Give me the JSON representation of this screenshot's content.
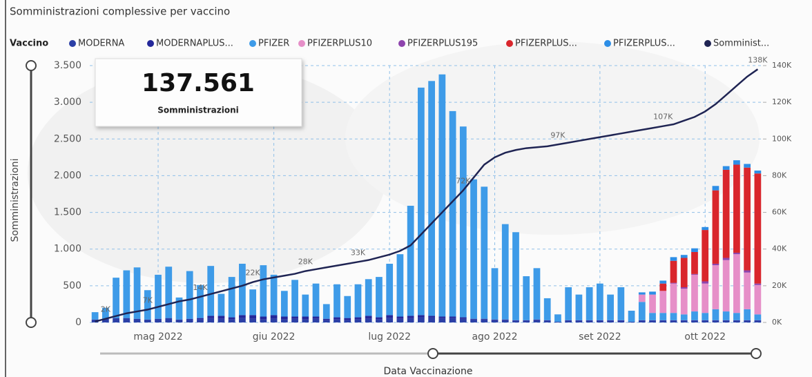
{
  "chart_data": {
    "type": "bar",
    "stacked": true,
    "title": "Somministrazioni complessive per vaccino",
    "legend_title": "Vaccino",
    "x_label": "Data Vaccinazione",
    "y_label": "Somministrazioni",
    "card": {
      "value": "137.561",
      "label": "Somministrazioni"
    },
    "grid": true,
    "categories": [
      null,
      null,
      null,
      null,
      null,
      null,
      "mag 2022",
      null,
      null,
      null,
      null,
      null,
      null,
      null,
      null,
      null,
      null,
      "giu 2022",
      null,
      null,
      null,
      null,
      null,
      null,
      null,
      null,
      null,
      null,
      "lug 2022",
      null,
      null,
      null,
      null,
      null,
      null,
      null,
      null,
      null,
      "ago 2022",
      null,
      null,
      null,
      null,
      null,
      null,
      null,
      null,
      null,
      "set 2022",
      null,
      null,
      null,
      null,
      null,
      null,
      null,
      null,
      null,
      "ott 2022",
      null,
      null,
      null,
      null,
      null
    ],
    "ylim": [
      0,
      3500
    ],
    "yticks": [
      0,
      500,
      {
        "value": 1000,
        "label": "1.000"
      },
      {
        "value": 1500,
        "label": "1.500"
      },
      {
        "value": 2000,
        "label": "2.000"
      },
      {
        "value": 2500,
        "label": "2.500"
      },
      {
        "value": 3000,
        "label": "3.000"
      },
      {
        "value": 3500,
        "label": "3.500"
      }
    ],
    "y2lim": [
      0,
      140000
    ],
    "y2ticks": [
      {
        "value": 0,
        "label": "0K"
      },
      {
        "value": 20000,
        "label": "20K"
      },
      {
        "value": 40000,
        "label": "40K"
      },
      {
        "value": 60000,
        "label": "60K"
      },
      {
        "value": 80000,
        "label": "80K"
      },
      {
        "value": 100000,
        "label": "100K"
      },
      {
        "value": 120000,
        "label": "120K"
      },
      {
        "value": 140000,
        "label": "140K"
      }
    ],
    "series": [
      {
        "name": "MODERNA",
        "color": "#2b3fa6",
        "values": [
          40,
          50,
          60,
          60,
          50,
          40,
          50,
          60,
          40,
          50,
          40,
          60,
          50,
          40,
          60,
          50,
          40,
          50,
          40,
          50,
          40,
          50,
          30,
          40,
          30,
          40,
          50,
          40,
          60,
          50,
          60,
          70,
          70,
          60,
          60,
          50,
          40,
          40,
          30,
          30,
          20,
          20,
          30,
          20,
          10,
          20,
          20,
          20,
          20,
          20,
          20,
          10,
          20,
          20,
          20,
          20,
          20,
          20,
          20,
          20,
          20,
          20,
          20,
          20
        ]
      },
      {
        "name": "MODERNAPLUS...",
        "color": "#24289a",
        "values": [
          0,
          0,
          0,
          0,
          0,
          0,
          0,
          0,
          0,
          0,
          20,
          30,
          40,
          30,
          40,
          50,
          40,
          50,
          40,
          30,
          40,
          30,
          20,
          30,
          30,
          30,
          40,
          30,
          40,
          30,
          30,
          30,
          20,
          20,
          20,
          20,
          10,
          10,
          10,
          10,
          10,
          10,
          10,
          10,
          0,
          10,
          10,
          10,
          10,
          10,
          10,
          0,
          10,
          10,
          10,
          10,
          10,
          10,
          10,
          10,
          10,
          10,
          10,
          10
        ]
      },
      {
        "name": "PFIZER",
        "color": "#3e9be8",
        "values": [
          100,
          150,
          550,
          650,
          700,
          400,
          600,
          700,
          300,
          650,
          450,
          680,
          300,
          550,
          700,
          350,
          700,
          550,
          350,
          500,
          300,
          450,
          200,
          450,
          300,
          450,
          500,
          550,
          700,
          850,
          1500,
          3100,
          3200,
          3300,
          2800,
          2600,
          1900,
          1800,
          700,
          1300,
          1200,
          600,
          700,
          300,
          100,
          450,
          350,
          450,
          500,
          350,
          450,
          150,
          250,
          100,
          100,
          100,
          80,
          120,
          100,
          150,
          120,
          100,
          150,
          80
        ]
      },
      {
        "name": "PFIZERPLUS10",
        "color": "#e68fc8",
        "values": [
          0,
          0,
          0,
          0,
          0,
          0,
          0,
          0,
          0,
          0,
          0,
          0,
          0,
          0,
          0,
          0,
          0,
          0,
          0,
          0,
          0,
          0,
          0,
          0,
          0,
          0,
          0,
          0,
          0,
          0,
          0,
          0,
          0,
          0,
          0,
          0,
          0,
          0,
          0,
          0,
          0,
          0,
          0,
          0,
          0,
          0,
          0,
          0,
          0,
          0,
          0,
          0,
          100,
          250,
          300,
          400,
          350,
          500,
          400,
          600,
          700,
          800,
          500,
          400
        ]
      },
      {
        "name": "PFIZERPLUS195",
        "color": "#8e44ad",
        "values": [
          0,
          0,
          0,
          0,
          0,
          0,
          0,
          0,
          0,
          0,
          0,
          0,
          0,
          0,
          0,
          0,
          0,
          0,
          0,
          0,
          0,
          0,
          0,
          0,
          0,
          0,
          0,
          0,
          0,
          0,
          0,
          0,
          0,
          0,
          0,
          0,
          0,
          0,
          0,
          0,
          0,
          0,
          0,
          0,
          0,
          0,
          0,
          0,
          0,
          0,
          0,
          0,
          0,
          0,
          0,
          10,
          20,
          10,
          30,
          20,
          30,
          20,
          30,
          20
        ]
      },
      {
        "name": "PFIZERPLUS...",
        "color": "#d9262c",
        "values": [
          0,
          0,
          0,
          0,
          0,
          0,
          0,
          0,
          0,
          0,
          0,
          0,
          0,
          0,
          0,
          0,
          0,
          0,
          0,
          0,
          0,
          0,
          0,
          0,
          0,
          0,
          0,
          0,
          0,
          0,
          0,
          0,
          0,
          0,
          0,
          0,
          0,
          0,
          0,
          0,
          0,
          0,
          0,
          0,
          0,
          0,
          0,
          0,
          0,
          0,
          0,
          0,
          0,
          0,
          100,
          300,
          400,
          300,
          700,
          1000,
          1200,
          1200,
          1400,
          1500
        ]
      },
      {
        "name": "PFIZERPLUS...",
        "color": "#2d8ee6",
        "values": [
          0,
          0,
          0,
          0,
          0,
          0,
          0,
          0,
          0,
          0,
          0,
          0,
          0,
          0,
          0,
          0,
          0,
          0,
          0,
          0,
          0,
          0,
          0,
          0,
          0,
          0,
          0,
          0,
          0,
          0,
          0,
          0,
          0,
          0,
          0,
          0,
          0,
          0,
          0,
          0,
          0,
          0,
          0,
          0,
          0,
          0,
          0,
          0,
          0,
          0,
          0,
          0,
          30,
          40,
          40,
          50,
          40,
          50,
          40,
          60,
          50,
          60,
          50,
          40
        ]
      },
      {
        "name": "Somminist...",
        "color": "#1f2453",
        "type": "line",
        "axis": "y2",
        "values": [
          500,
          2000,
          3500,
          5000,
          6000,
          7000,
          8500,
          10000,
          11500,
          12500,
          14000,
          15500,
          17000,
          18500,
          20000,
          22000,
          23500,
          24500,
          25500,
          26500,
          28000,
          29000,
          30000,
          31000,
          32000,
          33000,
          34000,
          35500,
          37000,
          39000,
          42000,
          48000,
          54000,
          60000,
          66000,
          72000,
          79000,
          86000,
          90000,
          92500,
          94000,
          95000,
          95500,
          96000,
          97000,
          98000,
          99000,
          100000,
          101000,
          102000,
          103000,
          104000,
          105000,
          106000,
          107000,
          108000,
          110000,
          112000,
          115000,
          119000,
          124000,
          129000,
          134000,
          138000
        ],
        "value_labels": [
          null,
          "2K",
          null,
          null,
          null,
          "7K",
          null,
          null,
          null,
          null,
          "14K",
          null,
          null,
          null,
          null,
          "22K",
          null,
          null,
          null,
          null,
          "28K",
          null,
          null,
          null,
          null,
          "33K",
          null,
          null,
          null,
          null,
          null,
          null,
          null,
          null,
          null,
          "72K",
          null,
          null,
          null,
          null,
          null,
          null,
          null,
          null,
          "97K",
          null,
          null,
          null,
          null,
          null,
          null,
          null,
          null,
          null,
          "107K",
          null,
          null,
          null,
          null,
          null,
          null,
          null,
          null,
          "138K"
        ]
      }
    ]
  }
}
